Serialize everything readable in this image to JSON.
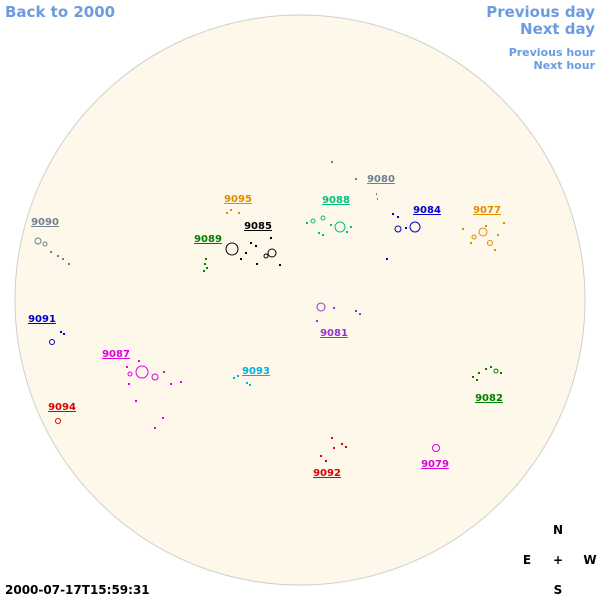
{
  "navigation": {
    "back": "Back to 2000",
    "previous_day": "Previous day",
    "next_day": "Next day",
    "previous_hour": "Previous hour",
    "next_hour": "Next hour"
  },
  "timestamp": "2000-07-17T15:59:31",
  "compass": {
    "north": "N",
    "east": "E",
    "center": "+",
    "west": "W",
    "south": "S"
  },
  "regions": [
    {
      "label": "9095",
      "color": "#e08c00"
    },
    {
      "label": "9088",
      "color": "#00c080"
    },
    {
      "label": "9080",
      "color": "#708090"
    },
    {
      "label": "9084",
      "color": "#0000cc"
    },
    {
      "label": "9077",
      "color": "#e08c00"
    },
    {
      "label": "9090",
      "color": "#708090"
    },
    {
      "label": "9085",
      "color": "#000000"
    },
    {
      "label": "9089",
      "color": "#008000"
    },
    {
      "label": "9091",
      "color": "#0000cc"
    },
    {
      "label": "9087",
      "color": "#e000e0"
    },
    {
      "label": "9081",
      "color": "#9933cc"
    },
    {
      "label": "9093",
      "color": "#00b0e0"
    },
    {
      "label": "9082",
      "color": "#008000"
    },
    {
      "label": "9094",
      "color": "#dd0000"
    },
    {
      "label": "9092",
      "color": "#dd0000"
    },
    {
      "label": "9079",
      "color": "#e000e0"
    }
  ]
}
